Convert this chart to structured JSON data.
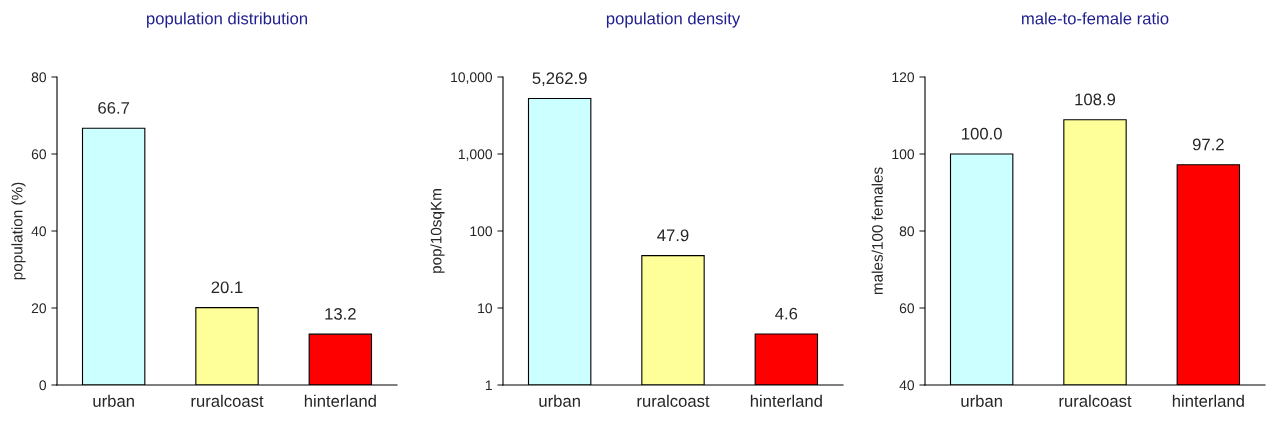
{
  "chart_data": [
    {
      "type": "bar",
      "title": "population distribution",
      "ylabel": "population (%)",
      "categories": [
        "urban",
        "ruralcoast",
        "hinterland"
      ],
      "values": [
        66.7,
        20.1,
        13.2
      ],
      "colors": [
        "#ccffff",
        "#ffff99",
        "#ff0000"
      ],
      "value_labels": [
        "66.7",
        "20.1",
        "13.2"
      ],
      "ylim": [
        0,
        80
      ],
      "yticks": [
        0,
        20,
        40,
        60,
        80
      ],
      "grid": false,
      "legend": false
    },
    {
      "type": "bar",
      "title": "population density",
      "ylabel": "pop/10sqKm",
      "categories": [
        "urban",
        "ruralcoast",
        "hinterland"
      ],
      "values": [
        5262.9,
        47.9,
        4.6
      ],
      "colors": [
        "#ccffff",
        "#ffff99",
        "#ff0000"
      ],
      "value_labels": [
        "5,262.9",
        "47.9",
        "4.6"
      ],
      "log": "y",
      "ylim": [
        1,
        10000
      ],
      "yticks": [
        1,
        10,
        100,
        {
          "value": 1000,
          "label": "1,000"
        },
        {
          "value": 10000,
          "label": "10,000"
        }
      ],
      "grid": false,
      "legend": false
    },
    {
      "type": "bar",
      "title": "male-to-female ratio",
      "ylabel": "males/100 females",
      "categories": [
        "urban",
        "ruralcoast",
        "hinterland"
      ],
      "values": [
        100.0,
        108.9,
        97.2
      ],
      "colors": [
        "#ccffff",
        "#ffff99",
        "#ff0000"
      ],
      "value_labels": [
        "100.0",
        "108.9",
        "97.2"
      ],
      "ylim": [
        40,
        120
      ],
      "yticks": [
        40,
        60,
        80,
        100,
        120
      ],
      "grid": false,
      "legend": false
    }
  ]
}
